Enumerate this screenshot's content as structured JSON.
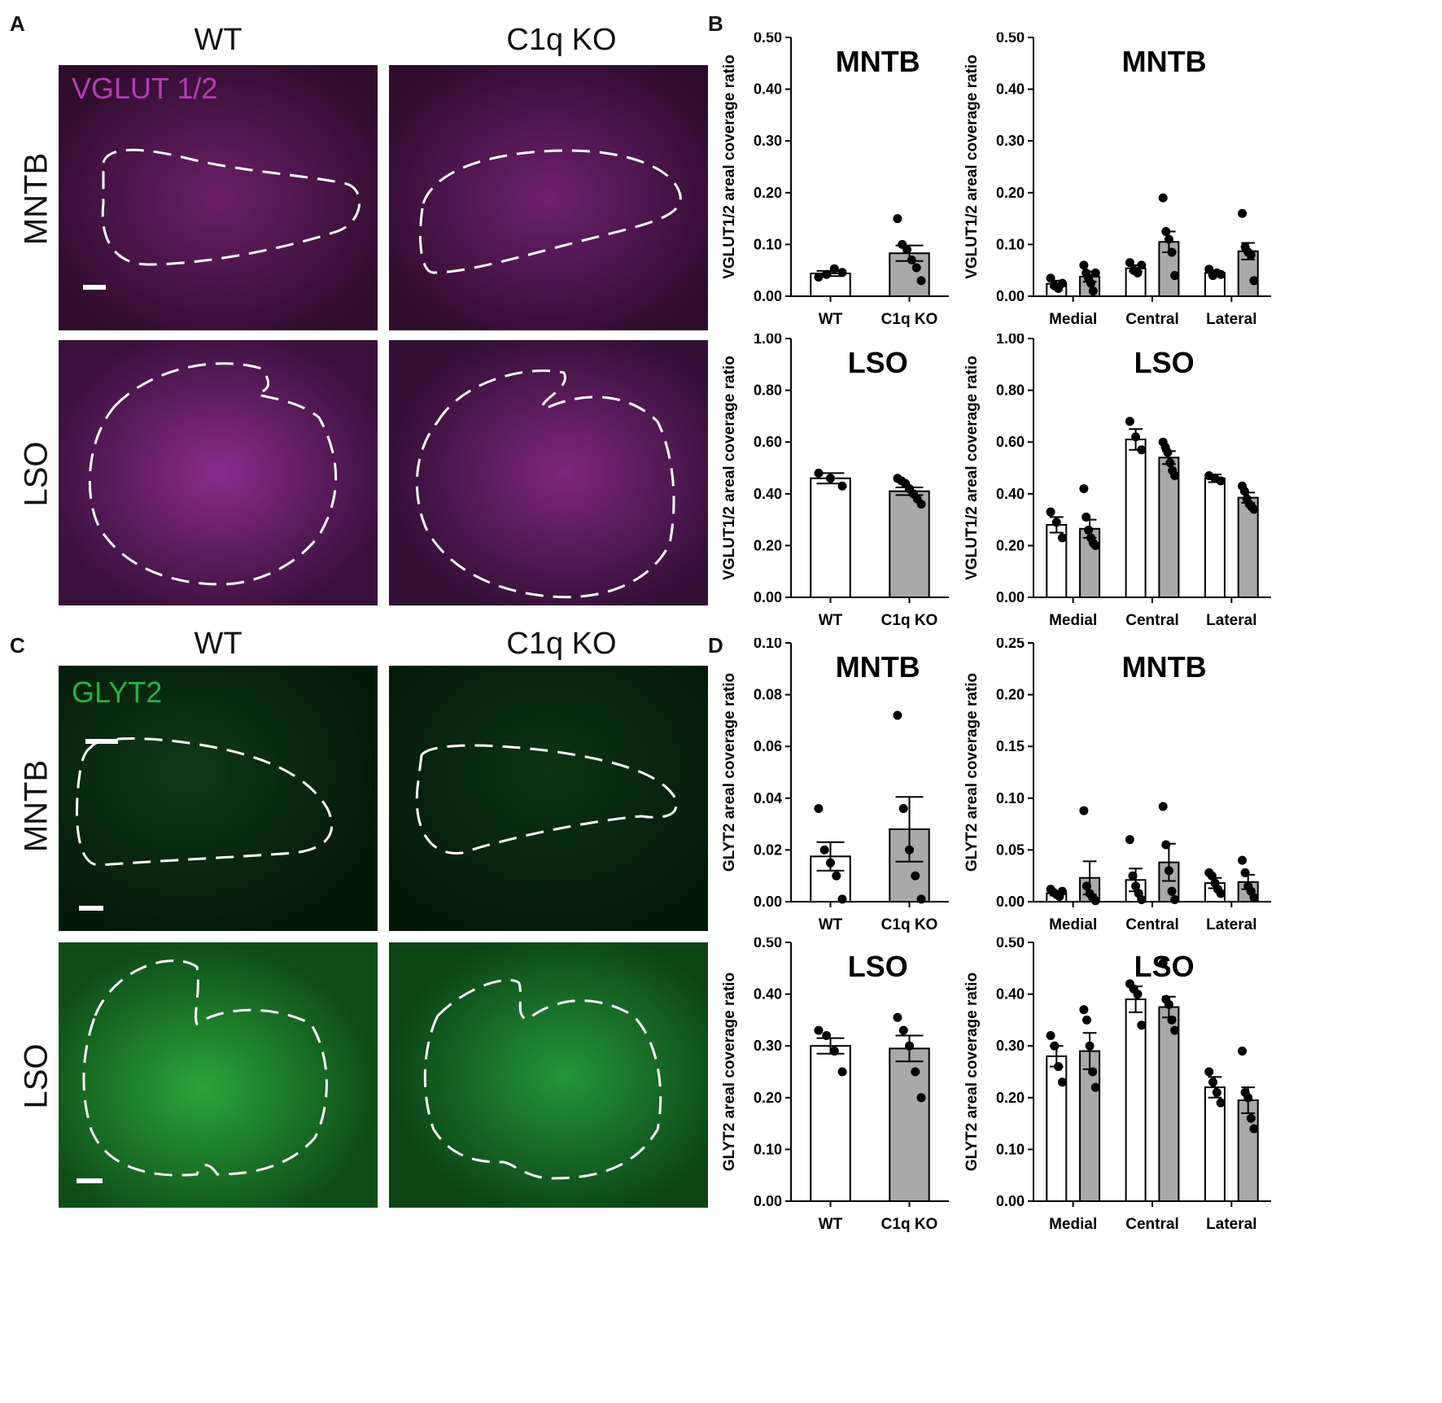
{
  "panel_labels": [
    "A",
    "B",
    "C",
    "D"
  ],
  "figure_A": {
    "col_titles": [
      "WT",
      "C1q KO"
    ],
    "row_labels": [
      "MNTB",
      "LSO"
    ],
    "stain": "VGLUT 1/2",
    "stain_color": "#b13fb1",
    "bg_color": "#3a0f38"
  },
  "figure_C": {
    "col_titles": [
      "WT",
      "C1q KO"
    ],
    "row_labels": [
      "MNTB",
      "LSO"
    ],
    "stain": "GLYT2",
    "stain_color": "#22b24a",
    "bg_color": "#06200b"
  },
  "colors": {
    "wt_fill": "#ffffff",
    "ko_fill": "#a9a9a9",
    "ink": "#000000"
  },
  "chart_data": [
    {
      "id": "B-MNTB-total",
      "type": "bar",
      "title": "MNTB",
      "ylabel": "VGLUT1/2 areal coverage ratio",
      "ylim": [
        0,
        0.5
      ],
      "yticks": [
        "0.00",
        "0.10",
        "0.20",
        "0.30",
        "0.40",
        "0.50"
      ],
      "ytick_values": [
        0,
        0.1,
        0.2,
        0.3,
        0.4,
        0.5
      ],
      "categories": [
        "WT",
        "C1q KO"
      ],
      "bars": [
        {
          "cat": 0,
          "group": "WT",
          "mean": 0.044,
          "sem": 0.005,
          "points": [
            0.037,
            0.042,
            0.053,
            0.046
          ]
        },
        {
          "cat": 1,
          "group": "C1q KO",
          "mean": 0.083,
          "sem": 0.015,
          "points": [
            0.15,
            0.1,
            0.09,
            0.07,
            0.055,
            0.03
          ]
        }
      ]
    },
    {
      "id": "B-MNTB-region",
      "type": "bar",
      "title": "MNTB",
      "ylabel": "VGLUT1/2 areal coverage ratio",
      "ylim": [
        0,
        0.5
      ],
      "yticks": [
        "0.00",
        "0.10",
        "0.20",
        "0.30",
        "0.40",
        "0.50"
      ],
      "ytick_values": [
        0,
        0.1,
        0.2,
        0.3,
        0.4,
        0.5
      ],
      "categories": [
        "Medial",
        "Central",
        "Lateral"
      ],
      "bars": [
        {
          "cat": 0,
          "group": "WT",
          "mean": 0.024,
          "sem": 0.006,
          "points": [
            0.035,
            0.02,
            0.015,
            0.025
          ]
        },
        {
          "cat": 0,
          "group": "C1q KO",
          "mean": 0.038,
          "sem": 0.01,
          "points": [
            0.06,
            0.045,
            0.035,
            0.025,
            0.01,
            0.045
          ]
        },
        {
          "cat": 1,
          "group": "WT",
          "mean": 0.054,
          "sem": 0.006,
          "points": [
            0.065,
            0.05,
            0.045,
            0.06
          ]
        },
        {
          "cat": 1,
          "group": "C1q KO",
          "mean": 0.105,
          "sem": 0.02,
          "points": [
            0.19,
            0.125,
            0.11,
            0.085,
            0.04
          ]
        },
        {
          "cat": 2,
          "group": "WT",
          "mean": 0.045,
          "sem": 0.004,
          "points": [
            0.052,
            0.04,
            0.045,
            0.042
          ]
        },
        {
          "cat": 2,
          "group": "C1q KO",
          "mean": 0.087,
          "sem": 0.016,
          "points": [
            0.16,
            0.095,
            0.085,
            0.08,
            0.03
          ]
        }
      ]
    },
    {
      "id": "B-LSO-total",
      "type": "bar",
      "title": "LSO",
      "ylabel": "VGLUT1/2 areal coverage ratio",
      "ylim": [
        0,
        1.0
      ],
      "yticks": [
        "0.00",
        "0.20",
        "0.40",
        "0.60",
        "0.80",
        "1.00"
      ],
      "ytick_values": [
        0,
        0.2,
        0.4,
        0.6,
        0.8,
        1.0
      ],
      "categories": [
        "WT",
        "C1q KO"
      ],
      "bars": [
        {
          "cat": 0,
          "group": "WT",
          "mean": 0.46,
          "sem": 0.02,
          "points": [
            0.48,
            0.46,
            0.43
          ]
        },
        {
          "cat": 1,
          "group": "C1q KO",
          "mean": 0.41,
          "sem": 0.015,
          "points": [
            0.46,
            0.45,
            0.44,
            0.42,
            0.4,
            0.38,
            0.36
          ]
        }
      ]
    },
    {
      "id": "B-LSO-region",
      "type": "bar",
      "title": "LSO",
      "ylabel": "VGLUT1/2 areal coverage ratio",
      "ylim": [
        0,
        1.0
      ],
      "yticks": [
        "0.00",
        "0.20",
        "0.40",
        "0.60",
        "0.80",
        "1.00"
      ],
      "ytick_values": [
        0,
        0.2,
        0.4,
        0.6,
        0.8,
        1.0
      ],
      "categories": [
        "Medial",
        "Central",
        "Lateral"
      ],
      "bars": [
        {
          "cat": 0,
          "group": "WT",
          "mean": 0.28,
          "sem": 0.03,
          "points": [
            0.33,
            0.29,
            0.23
          ]
        },
        {
          "cat": 0,
          "group": "C1q KO",
          "mean": 0.265,
          "sem": 0.035,
          "points": [
            0.42,
            0.31,
            0.26,
            0.23,
            0.21,
            0.2
          ]
        },
        {
          "cat": 1,
          "group": "WT",
          "mean": 0.61,
          "sem": 0.04,
          "points": [
            0.68,
            0.62,
            0.57
          ]
        },
        {
          "cat": 1,
          "group": "C1q KO",
          "mean": 0.54,
          "sem": 0.025,
          "points": [
            0.6,
            0.58,
            0.56,
            0.52,
            0.49,
            0.47
          ]
        },
        {
          "cat": 2,
          "group": "WT",
          "mean": 0.46,
          "sem": 0.015,
          "points": [
            0.47,
            0.46,
            0.45
          ]
        },
        {
          "cat": 2,
          "group": "C1q KO",
          "mean": 0.385,
          "sem": 0.02,
          "points": [
            0.43,
            0.41,
            0.38,
            0.36,
            0.35,
            0.34
          ]
        }
      ]
    },
    {
      "id": "D-MNTB-total",
      "type": "bar",
      "title": "MNTB",
      "ylabel": "GLYT2 areal coverage ratio",
      "ylim": [
        0,
        0.1
      ],
      "yticks": [
        "0.00",
        "0.02",
        "0.04",
        "0.06",
        "0.08",
        "0.10"
      ],
      "ytick_values": [
        0,
        0.02,
        0.04,
        0.06,
        0.08,
        0.1
      ],
      "categories": [
        "WT",
        "C1q KO"
      ],
      "bars": [
        {
          "cat": 0,
          "group": "WT",
          "mean": 0.0175,
          "sem": 0.0055,
          "points": [
            0.036,
            0.02,
            0.015,
            0.01,
            0.001
          ]
        },
        {
          "cat": 1,
          "group": "C1q KO",
          "mean": 0.028,
          "sem": 0.0125,
          "points": [
            0.072,
            0.036,
            0.02,
            0.01,
            0.001
          ]
        }
      ]
    },
    {
      "id": "D-MNTB-region",
      "type": "bar",
      "title": "MNTB",
      "ylabel": "GLYT2 areal coverage ratio",
      "ylim": [
        0,
        0.25
      ],
      "yticks": [
        "0.00",
        "0.05",
        "0.10",
        "0.15",
        "0.20",
        "0.25"
      ],
      "ytick_values": [
        0,
        0.05,
        0.1,
        0.15,
        0.2,
        0.25
      ],
      "categories": [
        "Medial",
        "Central",
        "Lateral"
      ],
      "bars": [
        {
          "cat": 0,
          "group": "WT",
          "mean": 0.008,
          "sem": 0.002,
          "points": [
            0.012,
            0.009,
            0.007,
            0.005,
            0.01
          ]
        },
        {
          "cat": 0,
          "group": "C1q KO",
          "mean": 0.023,
          "sem": 0.016,
          "points": [
            0.088,
            0.015,
            0.008,
            0.004,
            0.001
          ]
        },
        {
          "cat": 1,
          "group": "WT",
          "mean": 0.021,
          "sem": 0.011,
          "points": [
            0.06,
            0.025,
            0.015,
            0.008,
            0.002
          ]
        },
        {
          "cat": 1,
          "group": "C1q KO",
          "mean": 0.038,
          "sem": 0.018,
          "points": [
            0.092,
            0.055,
            0.03,
            0.01,
            0.002
          ]
        },
        {
          "cat": 2,
          "group": "WT",
          "mean": 0.018,
          "sem": 0.005,
          "points": [
            0.028,
            0.025,
            0.018,
            0.012,
            0.008
          ]
        },
        {
          "cat": 2,
          "group": "C1q KO",
          "mean": 0.019,
          "sem": 0.007,
          "points": [
            0.04,
            0.028,
            0.015,
            0.01,
            0.004
          ]
        }
      ]
    },
    {
      "id": "D-LSO-total",
      "type": "bar",
      "title": "LSO",
      "ylabel": "GLYT2 areal coverage ratio",
      "ylim": [
        0,
        0.5
      ],
      "yticks": [
        "0.00",
        "0.10",
        "0.20",
        "0.30",
        "0.40",
        "0.50"
      ],
      "ytick_values": [
        0,
        0.1,
        0.2,
        0.3,
        0.4,
        0.5
      ],
      "categories": [
        "WT",
        "C1q KO"
      ],
      "bars": [
        {
          "cat": 0,
          "group": "WT",
          "mean": 0.3,
          "sem": 0.015,
          "points": [
            0.33,
            0.32,
            0.29,
            0.25
          ]
        },
        {
          "cat": 1,
          "group": "C1q KO",
          "mean": 0.295,
          "sem": 0.025,
          "points": [
            0.355,
            0.33,
            0.3,
            0.25,
            0.2
          ]
        }
      ]
    },
    {
      "id": "D-LSO-region",
      "type": "bar",
      "title": "LSO",
      "ylabel": "GLYT2 areal coverage ratio",
      "ylim": [
        0,
        0.5
      ],
      "yticks": [
        "0.00",
        "0.10",
        "0.20",
        "0.30",
        "0.40",
        "0.50"
      ],
      "ytick_values": [
        0,
        0.1,
        0.2,
        0.3,
        0.4,
        0.5
      ],
      "categories": [
        "Medial",
        "Central",
        "Lateral"
      ],
      "bars": [
        {
          "cat": 0,
          "group": "WT",
          "mean": 0.28,
          "sem": 0.02,
          "points": [
            0.32,
            0.3,
            0.26,
            0.23
          ]
        },
        {
          "cat": 0,
          "group": "C1q KO",
          "mean": 0.29,
          "sem": 0.035,
          "points": [
            0.37,
            0.35,
            0.3,
            0.25,
            0.22
          ]
        },
        {
          "cat": 1,
          "group": "WT",
          "mean": 0.39,
          "sem": 0.025,
          "points": [
            0.42,
            0.41,
            0.4,
            0.34
          ]
        },
        {
          "cat": 1,
          "group": "C1q KO",
          "mean": 0.375,
          "sem": 0.02,
          "points": [
            0.46,
            0.39,
            0.38,
            0.35,
            0.33
          ]
        },
        {
          "cat": 2,
          "group": "WT",
          "mean": 0.22,
          "sem": 0.02,
          "points": [
            0.25,
            0.23,
            0.21,
            0.19
          ]
        },
        {
          "cat": 2,
          "group": "C1q KO",
          "mean": 0.195,
          "sem": 0.025,
          "points": [
            0.29,
            0.21,
            0.2,
            0.16,
            0.14
          ]
        }
      ]
    }
  ]
}
